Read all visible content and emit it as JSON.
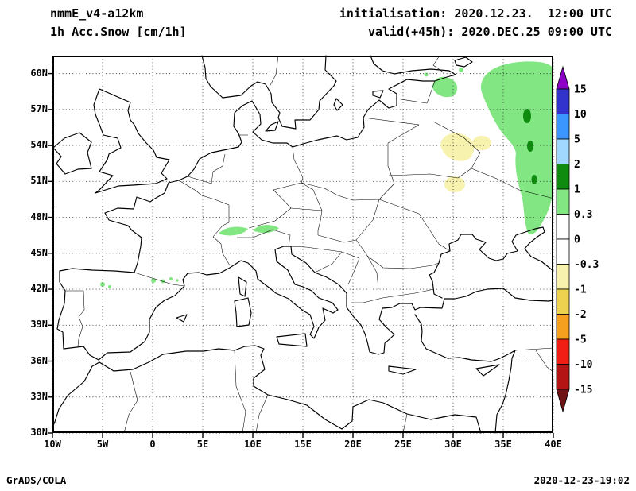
{
  "header": {
    "model_line1": "nmmE_v4-a12km",
    "model_line2": "1h Acc.Snow [cm/1h]",
    "init_line": "initialisation: 2020.12.23.  12:00 UTC",
    "valid_line": "valid(+45h): 2020.DEC.25 09:00 UTC"
  },
  "footer": {
    "left": "GrADS/COLA",
    "right": "2020-12-23-19:02"
  },
  "chart_data": {
    "type": "heatmap",
    "title": "1h Acc.Snow [cm/1h]",
    "model": "nmmE_v4-a12km",
    "initialisation": "2020.12.23. 12:00 UTC",
    "valid": "2020.DEC.25 09:00 UTC (+45h)",
    "unit": "cm/1h",
    "projection": "latlon",
    "grid": "dotted",
    "lon_range": [
      -10,
      40
    ],
    "lat_range": [
      30,
      61.5
    ],
    "x_ticks": {
      "values": [
        -10,
        -5,
        0,
        5,
        10,
        15,
        20,
        25,
        30,
        35,
        40
      ],
      "labels": [
        "10W",
        "5W",
        "0",
        "5E",
        "10E",
        "15E",
        "20E",
        "25E",
        "30E",
        "35E",
        "40E"
      ]
    },
    "y_ticks": {
      "values": [
        60,
        57,
        54,
        51,
        48,
        45,
        42,
        39,
        36,
        33,
        30
      ],
      "labels": [
        "60N",
        "57N",
        "54N",
        "51N",
        "48N",
        "45N",
        "42N",
        "39N",
        "36N",
        "33N",
        "30N"
      ]
    },
    "colorbar": {
      "position": "right",
      "extend_arrows": true,
      "tick_labels": [
        "15",
        "10",
        "5",
        "2",
        "1",
        "0.3",
        "0",
        "-0.3",
        "-1",
        "-2",
        "-5",
        "-10",
        "-15"
      ],
      "levels": [
        15,
        10,
        5,
        2,
        1,
        0.3,
        0,
        -0.3,
        -1,
        -2,
        -5,
        -10,
        -15
      ],
      "colors_top_to_bottom": [
        "#8c00c8",
        "#3232cc",
        "#3c96ff",
        "#a0d8ff",
        "#0f8c0f",
        "#82e682",
        "#ffffff",
        "#ffffff",
        "#f8f2af",
        "#edd24f",
        "#f5a01e",
        "#f01e14",
        "#b41414",
        "#6e1414"
      ]
    },
    "shaded_regions": [
      {
        "band": "0.3 to 1 cm",
        "color": "#82e682",
        "area": "large elongated area over NW/Central European Russia, approx 33E-40E, 47N-61N along right edge"
      },
      {
        "band": "0.3 to 1 cm",
        "color": "#82e682",
        "area": "patch near Gulf of Finland / Estonia-Pskov region, approx 28E-30.5E, 58N-59.5N"
      },
      {
        "band": "0.3 to 1 cm",
        "color": "#82e682",
        "area": "narrow band along the Alps, approx 6.5E-12.5E near 46.5N"
      },
      {
        "band": "0.3 to 1 cm",
        "color": "#82e682",
        "area": "small spots over Pyrenees and Cantabrian mountains, approx 5W-2E near 42.5N-43N"
      },
      {
        "band": "1 to 2 cm",
        "color": "#0f8c0f",
        "area": "small cores inside the Russian snow area, approx 36.5E-38E, 51N-56N"
      },
      {
        "band": "-1 to -0.3 cm",
        "color": "#f8f2af",
        "area": "pale patches west of the snow area, approx 29E-33E, 50N-55N"
      }
    ]
  }
}
